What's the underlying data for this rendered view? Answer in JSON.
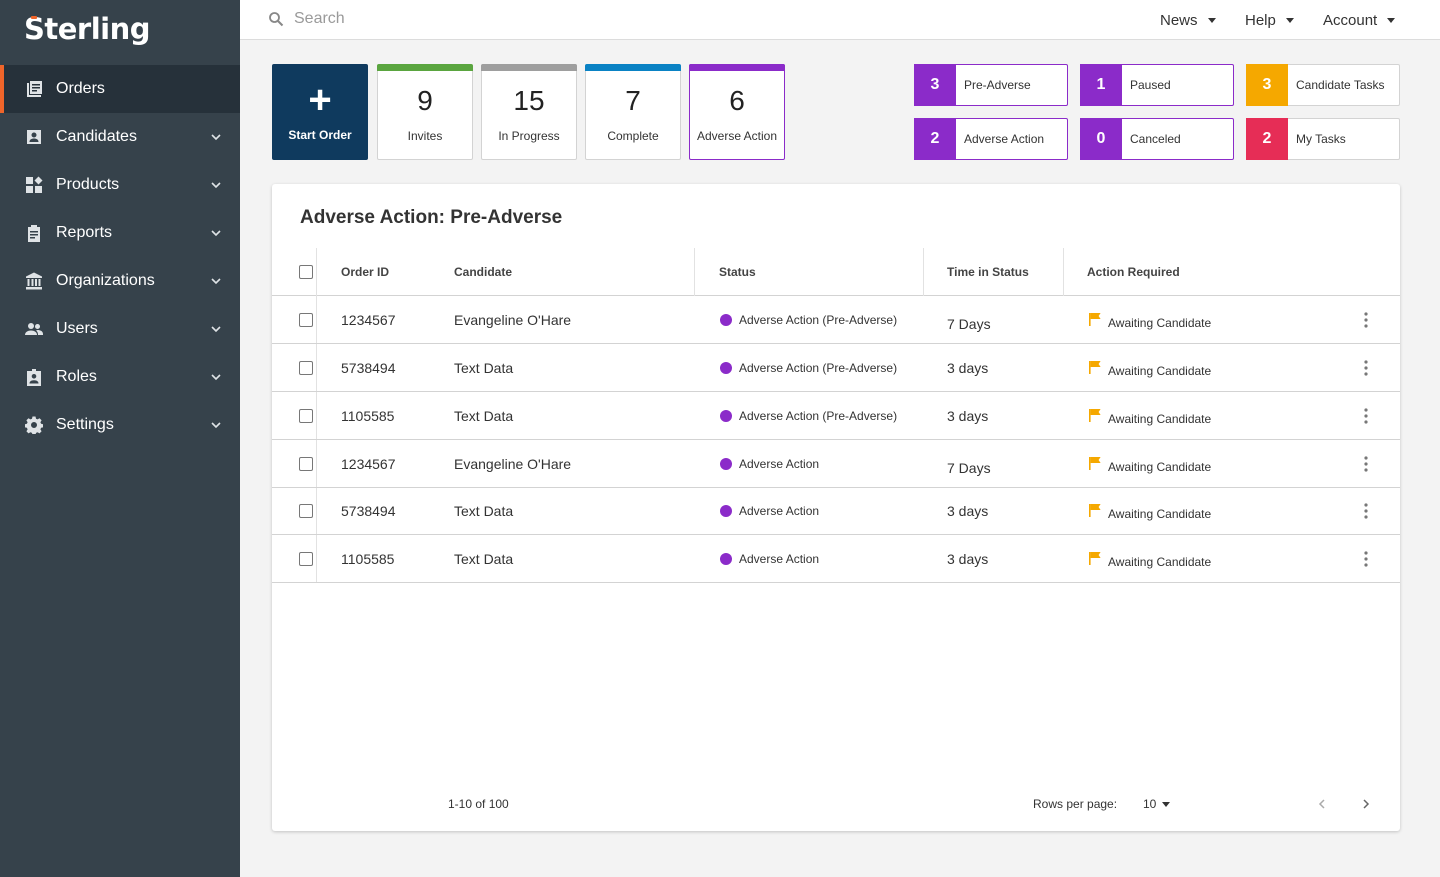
{
  "brand": {
    "name": "Sterling"
  },
  "sidebar": {
    "items": [
      {
        "label": "Orders",
        "icon": "orders-icon",
        "active": true
      },
      {
        "label": "Candidates",
        "icon": "candidates-icon"
      },
      {
        "label": "Products",
        "icon": "products-icon"
      },
      {
        "label": "Reports",
        "icon": "reports-icon"
      },
      {
        "label": "Organizations",
        "icon": "organizations-icon"
      },
      {
        "label": "Users",
        "icon": "users-icon"
      },
      {
        "label": "Roles",
        "icon": "roles-icon"
      },
      {
        "label": "Settings",
        "icon": "settings-icon"
      }
    ]
  },
  "topbar": {
    "search_placeholder": "Search",
    "menus": [
      "News",
      "Help",
      "Account"
    ]
  },
  "summary": {
    "start_order_label": "Start Order",
    "cards": [
      {
        "count": "9",
        "label": "Invites",
        "color": "#5aa53f"
      },
      {
        "count": "15",
        "label": "In Progress",
        "color": "#9e9e9e"
      },
      {
        "count": "7",
        "label": "Complete",
        "color": "#0a82c4"
      },
      {
        "count": "6",
        "label": "Adverse Action",
        "color": "#8b2bc9"
      }
    ],
    "chips": [
      {
        "count": "3",
        "label": "Pre-Adverse",
        "color": "#8b2bc9"
      },
      {
        "count": "1",
        "label": "Paused",
        "color": "#8b2bc9"
      },
      {
        "count": "3",
        "label": "Candidate Tasks",
        "color": "#f5a800"
      },
      {
        "count": "2",
        "label": "Adverse Action",
        "color": "#8b2bc9"
      },
      {
        "count": "0",
        "label": "Canceled",
        "color": "#8b2bc9"
      },
      {
        "count": "2",
        "label": "My Tasks",
        "color": "#e62d56"
      }
    ]
  },
  "panel": {
    "title": "Adverse Action: Pre-Adverse",
    "columns": [
      "Order ID",
      "Candidate",
      "Status",
      "Time in Status",
      "Action Required"
    ],
    "rows": [
      {
        "order_id": "1234567",
        "candidate": "Evangeline O'Hare",
        "status": "Adverse Action (Pre-Adverse)",
        "time": "7 Days",
        "action": "Awaiting Candidate"
      },
      {
        "order_id": "5738494",
        "candidate": "Text Data",
        "status": "Adverse Action (Pre-Adverse)",
        "time": "3 days",
        "action": "Awaiting Candidate"
      },
      {
        "order_id": "1105585",
        "candidate": "Text Data",
        "status": "Adverse Action (Pre-Adverse)",
        "time": "3 days",
        "action": "Awaiting Candidate"
      },
      {
        "order_id": "1234567",
        "candidate": "Evangeline O'Hare",
        "status": "Adverse Action",
        "time": "7 Days",
        "action": "Awaiting Candidate"
      },
      {
        "order_id": "5738494",
        "candidate": "Text Data",
        "status": "Adverse Action",
        "time": "3 days",
        "action": "Awaiting Candidate"
      },
      {
        "order_id": "1105585",
        "candidate": "Text Data",
        "status": "Adverse Action",
        "time": "3 days",
        "action": "Awaiting Candidate"
      }
    ],
    "status_color": "#8b2bc9",
    "flag_color": "#f5a800",
    "pagination": {
      "range": "1-10 of 100",
      "rows_per_page_label": "Rows per page:",
      "rows_per_page_value": "10"
    }
  }
}
